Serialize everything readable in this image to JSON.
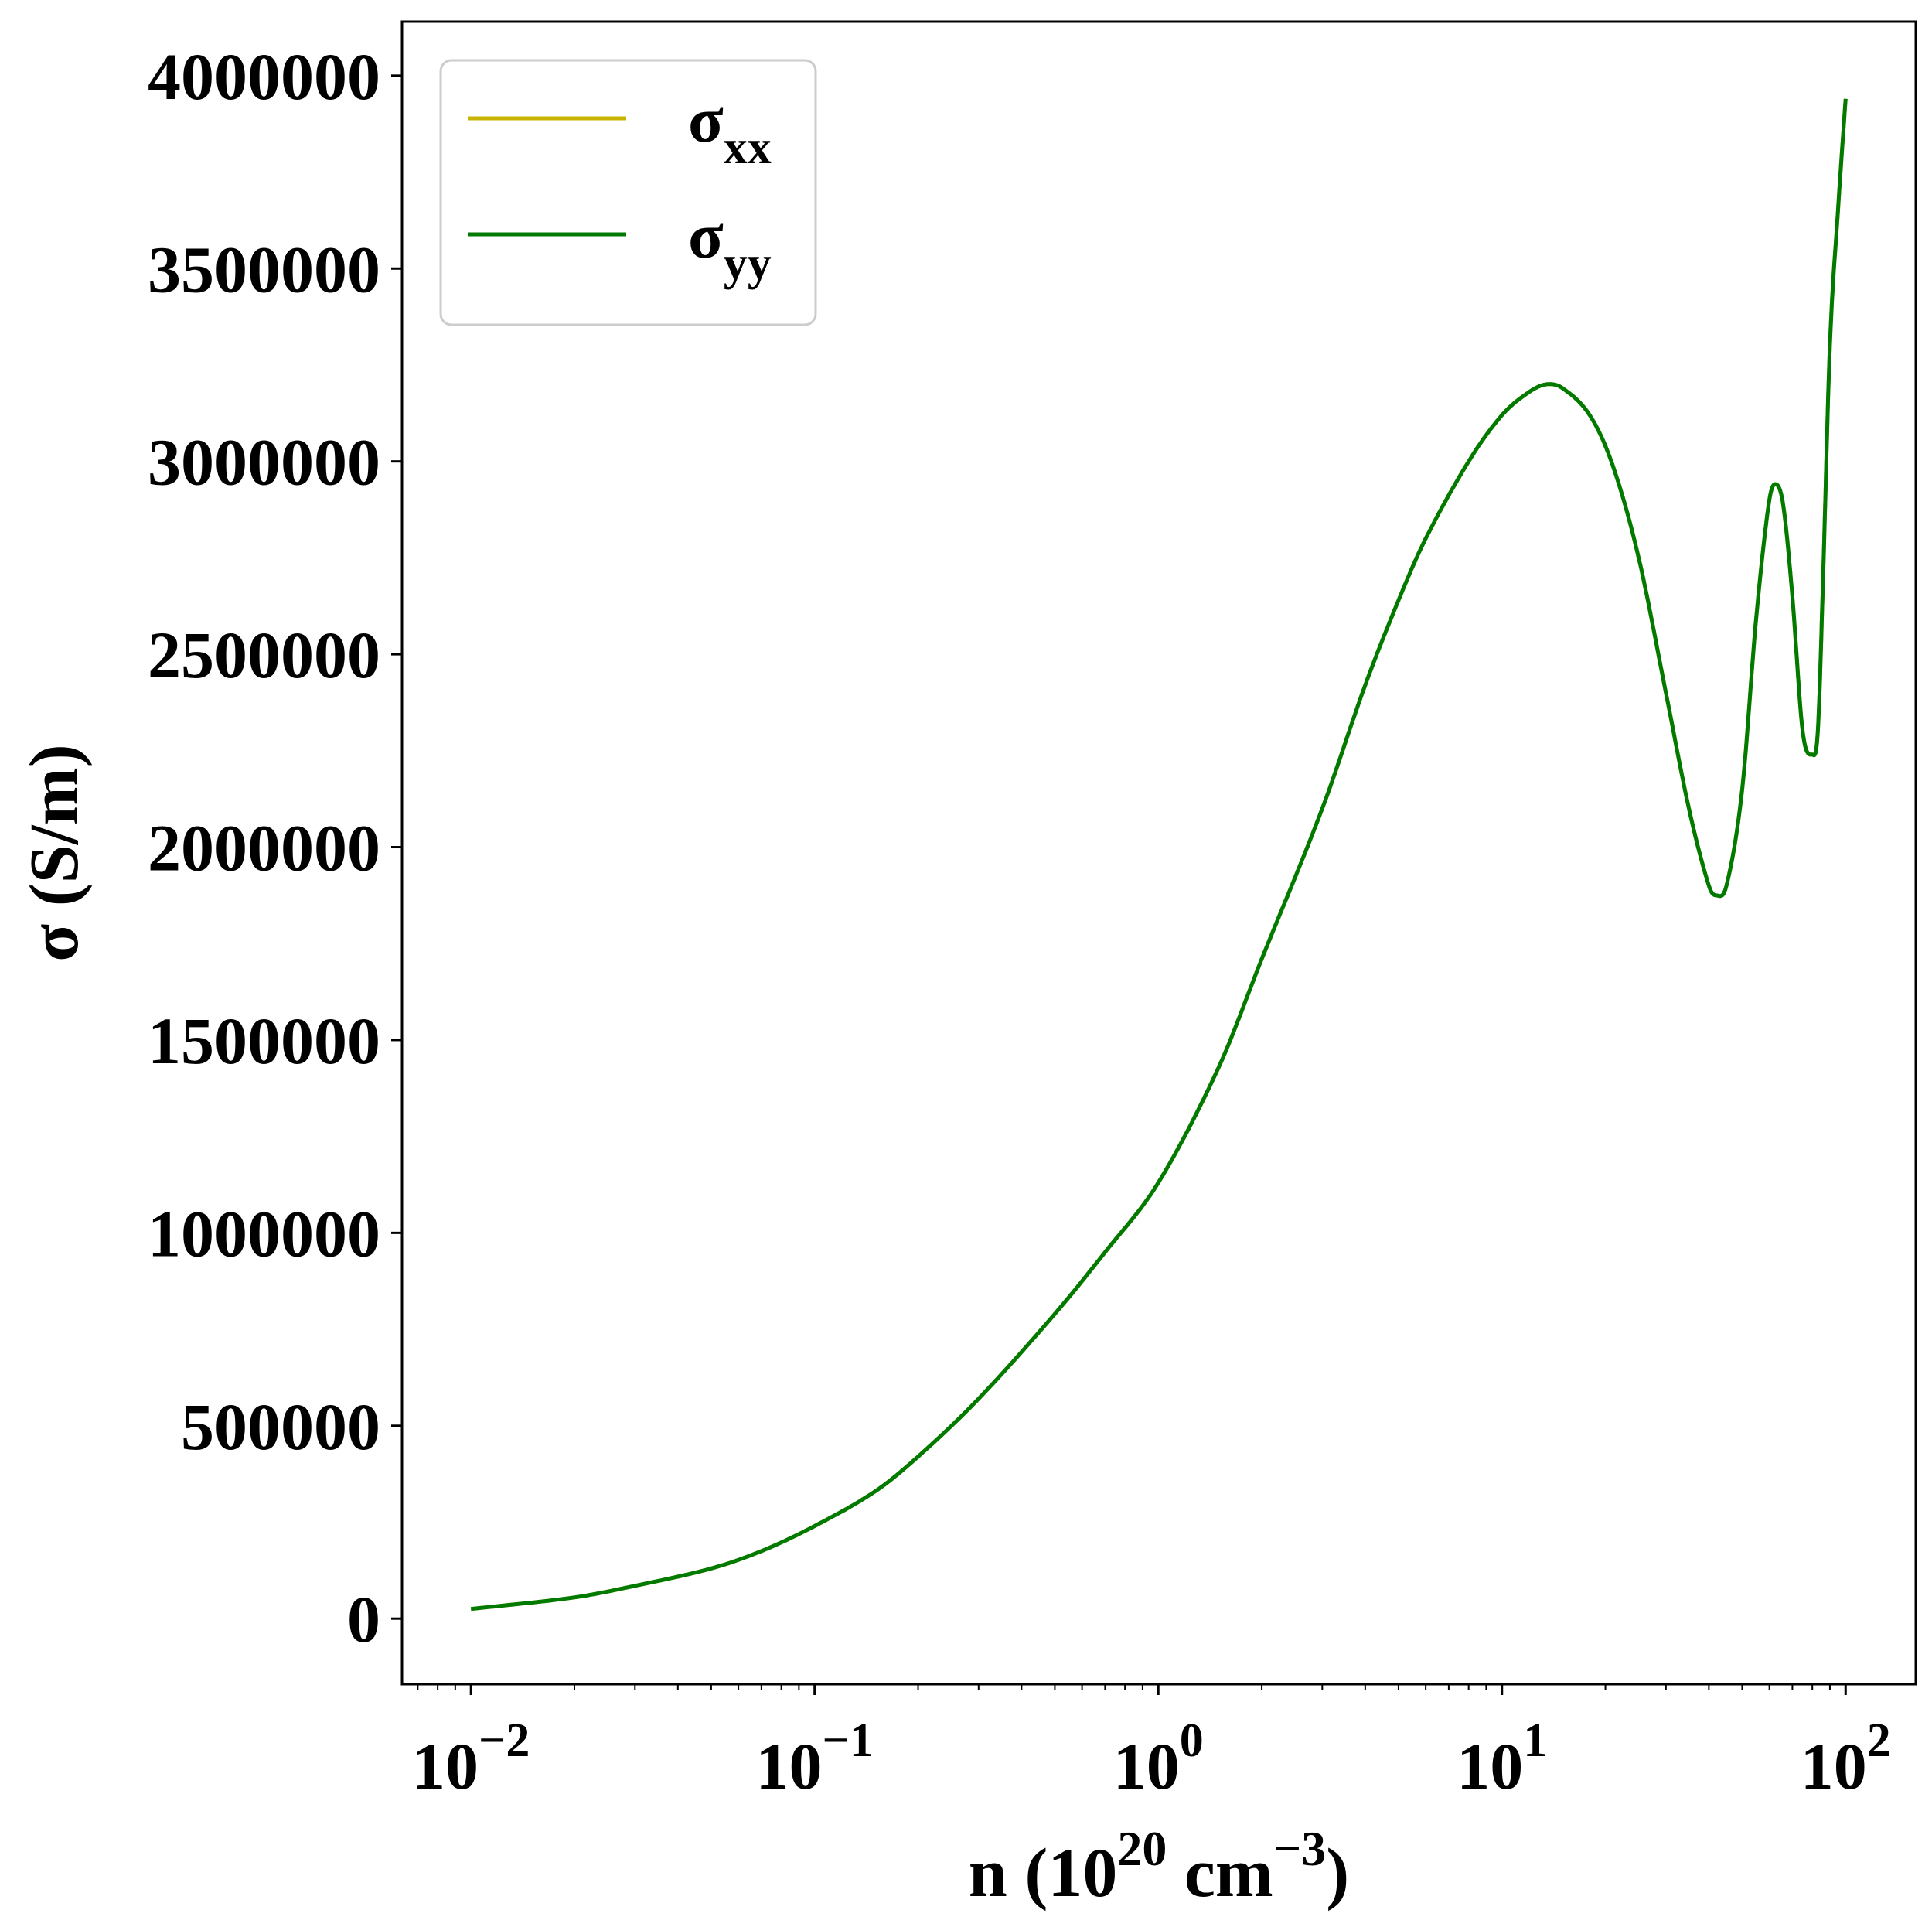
{
  "chart_data": {
    "type": "line",
    "xlabel": "n (10",
    "xlabel_exp": "20",
    "xlabel_unit": " cm",
    "xlabel_unit_exp": "−3",
    "xlabel_close": ")",
    "ylabel": "σ (S/m)",
    "xscale": "log",
    "xlim": [
      0.0063,
      160
    ],
    "ylim": [
      -170000,
      4140000
    ],
    "grid": false,
    "legend_position": "top-left",
    "x_ticks": [
      {
        "value": 0.01,
        "base": "10",
        "exp": "−2"
      },
      {
        "value": 0.1,
        "base": "10",
        "exp": "−1"
      },
      {
        "value": 1,
        "base": "10",
        "exp": "0"
      },
      {
        "value": 10,
        "base": "10",
        "exp": "1"
      },
      {
        "value": 100,
        "base": "10",
        "exp": "2"
      }
    ],
    "y_ticks": [
      0,
      500000,
      1000000,
      1500000,
      2000000,
      2500000,
      3000000,
      3500000,
      4000000
    ],
    "y_tick_labels": [
      "0",
      "500000",
      "1000000",
      "1500000",
      "2000000",
      "2500000",
      "3000000",
      "3500000",
      "4000000"
    ],
    "series": [
      {
        "name": "σ",
        "name_sub": "xx",
        "color": "#c8b400",
        "x": [
          0.01,
          0.02,
          0.03,
          0.05,
          0.07,
          0.1,
          0.15,
          0.2,
          0.3,
          0.5,
          0.7,
          1.0,
          1.5,
          2.0,
          3.0,
          4.0,
          5.0,
          6.0,
          8.0,
          10.0,
          12.0,
          13.5,
          15.0,
          18.0,
          21.0,
          25.0,
          30.0,
          35.0,
          40.0,
          42.0,
          45.0,
          50.0,
          55.0,
          60.0,
          63.0,
          66.0,
          70.0,
          75.0,
          80.0,
          83.0,
          86.0,
          90.0,
          95.0,
          100.0
        ],
        "y": [
          25000,
          55000,
          85000,
          130000,
          175000,
          240000,
          330000,
          420000,
          570000,
          790000,
          950000,
          1130000,
          1430000,
          1710000,
          2100000,
          2420000,
          2640000,
          2800000,
          3000000,
          3120000,
          3180000,
          3200000,
          3190000,
          3120000,
          2990000,
          2750000,
          2400000,
          2100000,
          1900000,
          1875000,
          1900000,
          2150000,
          2600000,
          2900000,
          2940000,
          2880000,
          2650000,
          2300000,
          2240000,
          2300000,
          2700000,
          3300000,
          3650000,
          3940000
        ]
      },
      {
        "name": "σ",
        "name_sub": "yy",
        "color": "#007a00",
        "x": [
          0.01,
          0.02,
          0.03,
          0.05,
          0.07,
          0.1,
          0.15,
          0.2,
          0.3,
          0.5,
          0.7,
          1.0,
          1.5,
          2.0,
          3.0,
          4.0,
          5.0,
          6.0,
          8.0,
          10.0,
          12.0,
          13.5,
          15.0,
          18.0,
          21.0,
          25.0,
          30.0,
          35.0,
          40.0,
          42.0,
          45.0,
          50.0,
          55.0,
          60.0,
          63.0,
          66.0,
          70.0,
          75.0,
          80.0,
          83.0,
          86.0,
          90.0,
          95.0,
          100.0
        ],
        "y": [
          25000,
          55000,
          85000,
          130000,
          175000,
          240000,
          330000,
          420000,
          570000,
          790000,
          950000,
          1130000,
          1430000,
          1710000,
          2100000,
          2420000,
          2640000,
          2800000,
          3000000,
          3120000,
          3180000,
          3200000,
          3190000,
          3120000,
          2990000,
          2750000,
          2400000,
          2100000,
          1900000,
          1875000,
          1900000,
          2150000,
          2600000,
          2900000,
          2940000,
          2880000,
          2650000,
          2300000,
          2240000,
          2300000,
          2700000,
          3300000,
          3650000,
          3940000
        ]
      }
    ]
  }
}
